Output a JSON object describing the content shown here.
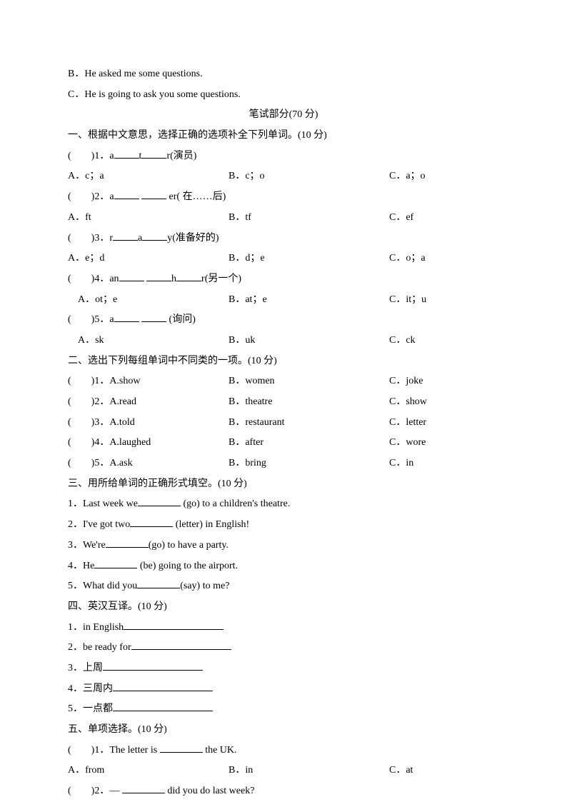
{
  "intro": {
    "b": "B．He asked me some questions.",
    "c": "C．He is going to ask you some questions."
  },
  "section_header": "笔试部分(70 分)",
  "s1": {
    "title": "一、根据中文意思，选择正确的选项补全下列单词。(10 分)",
    "q1": {
      "prompt_a": "(　　)1．a",
      "prompt_b": "t",
      "prompt_c": "r(演员)",
      "a": "A．c；a",
      "b": "B．c；o",
      "c": "C．a；o"
    },
    "q2": {
      "prompt_a": "(　　)2．a",
      "prompt_b": " er( 在……后)",
      "a": "A．ft",
      "b": "B．tf",
      "c": "C．ef"
    },
    "q3": {
      "prompt_a": "(　　)3．r",
      "prompt_b": "a",
      "prompt_c": "y(准备好的)",
      "a": "A．e；d",
      "b": "B．d；e",
      "c": "C．o；a"
    },
    "q4": {
      "prompt_a": "(　　)4．an",
      "prompt_b": "h",
      "prompt_c": "r(另一个)",
      "a": "　A．ot；e",
      "b": "B．at；e",
      "c": "C．it；u"
    },
    "q5": {
      "prompt_a": "(　　)5．a",
      "prompt_b": " (询问)",
      "a": "　A．sk",
      "b": "B．uk",
      "c": "C．ck"
    }
  },
  "s2": {
    "title": "二、选出下列每组单词中不同类的一项。(10 分)",
    "rows": [
      {
        "a": "(　　)1．A.show",
        "b": "B．women",
        "c": "C．joke"
      },
      {
        "a": "(　　)2．A.read",
        "b": "B．theatre",
        "c": "C．show"
      },
      {
        "a": "(　　)3．A.told",
        "b": "B．restaurant",
        "c": "C．letter"
      },
      {
        "a": "(　　)4．A.laughed",
        "b": "B．after",
        "c": "C．wore"
      },
      {
        "a": "(　　)5．A.ask",
        "b": "B．bring",
        "c": "C．in"
      }
    ]
  },
  "s3": {
    "title": "三、用所给单词的正确形式填空。(10 分)",
    "q1a": "1．Last week we",
    "q1b": " (go) to a children's theatre.",
    "q2a": "2．I've got two",
    "q2b": " (letter) in English!",
    "q3a": "3．We're",
    "q3b": "(go) to have a party.",
    "q4a": "4．He",
    "q4b": " (be) going to the airport.",
    "q5a": "5．What did you",
    "q5b": "(say) to me?"
  },
  "s4": {
    "title": "四、英汉互译。(10 分)",
    "q1": "1．in English",
    "q2": "2．be ready for",
    "q3": "3．上周",
    "q4": "4．三周内",
    "q5": "5．一点都"
  },
  "s5": {
    "title": "五、单项选择。(10 分)",
    "q1": {
      "prompt_a": "(　　)1．The letter is ",
      "prompt_b": " the UK.",
      "a": "A．from",
      "b": "B．in",
      "c": "C．at"
    },
    "q2": {
      "prompt_a": "(　　)2．— ",
      "prompt_b": " did you do last week?"
    }
  }
}
